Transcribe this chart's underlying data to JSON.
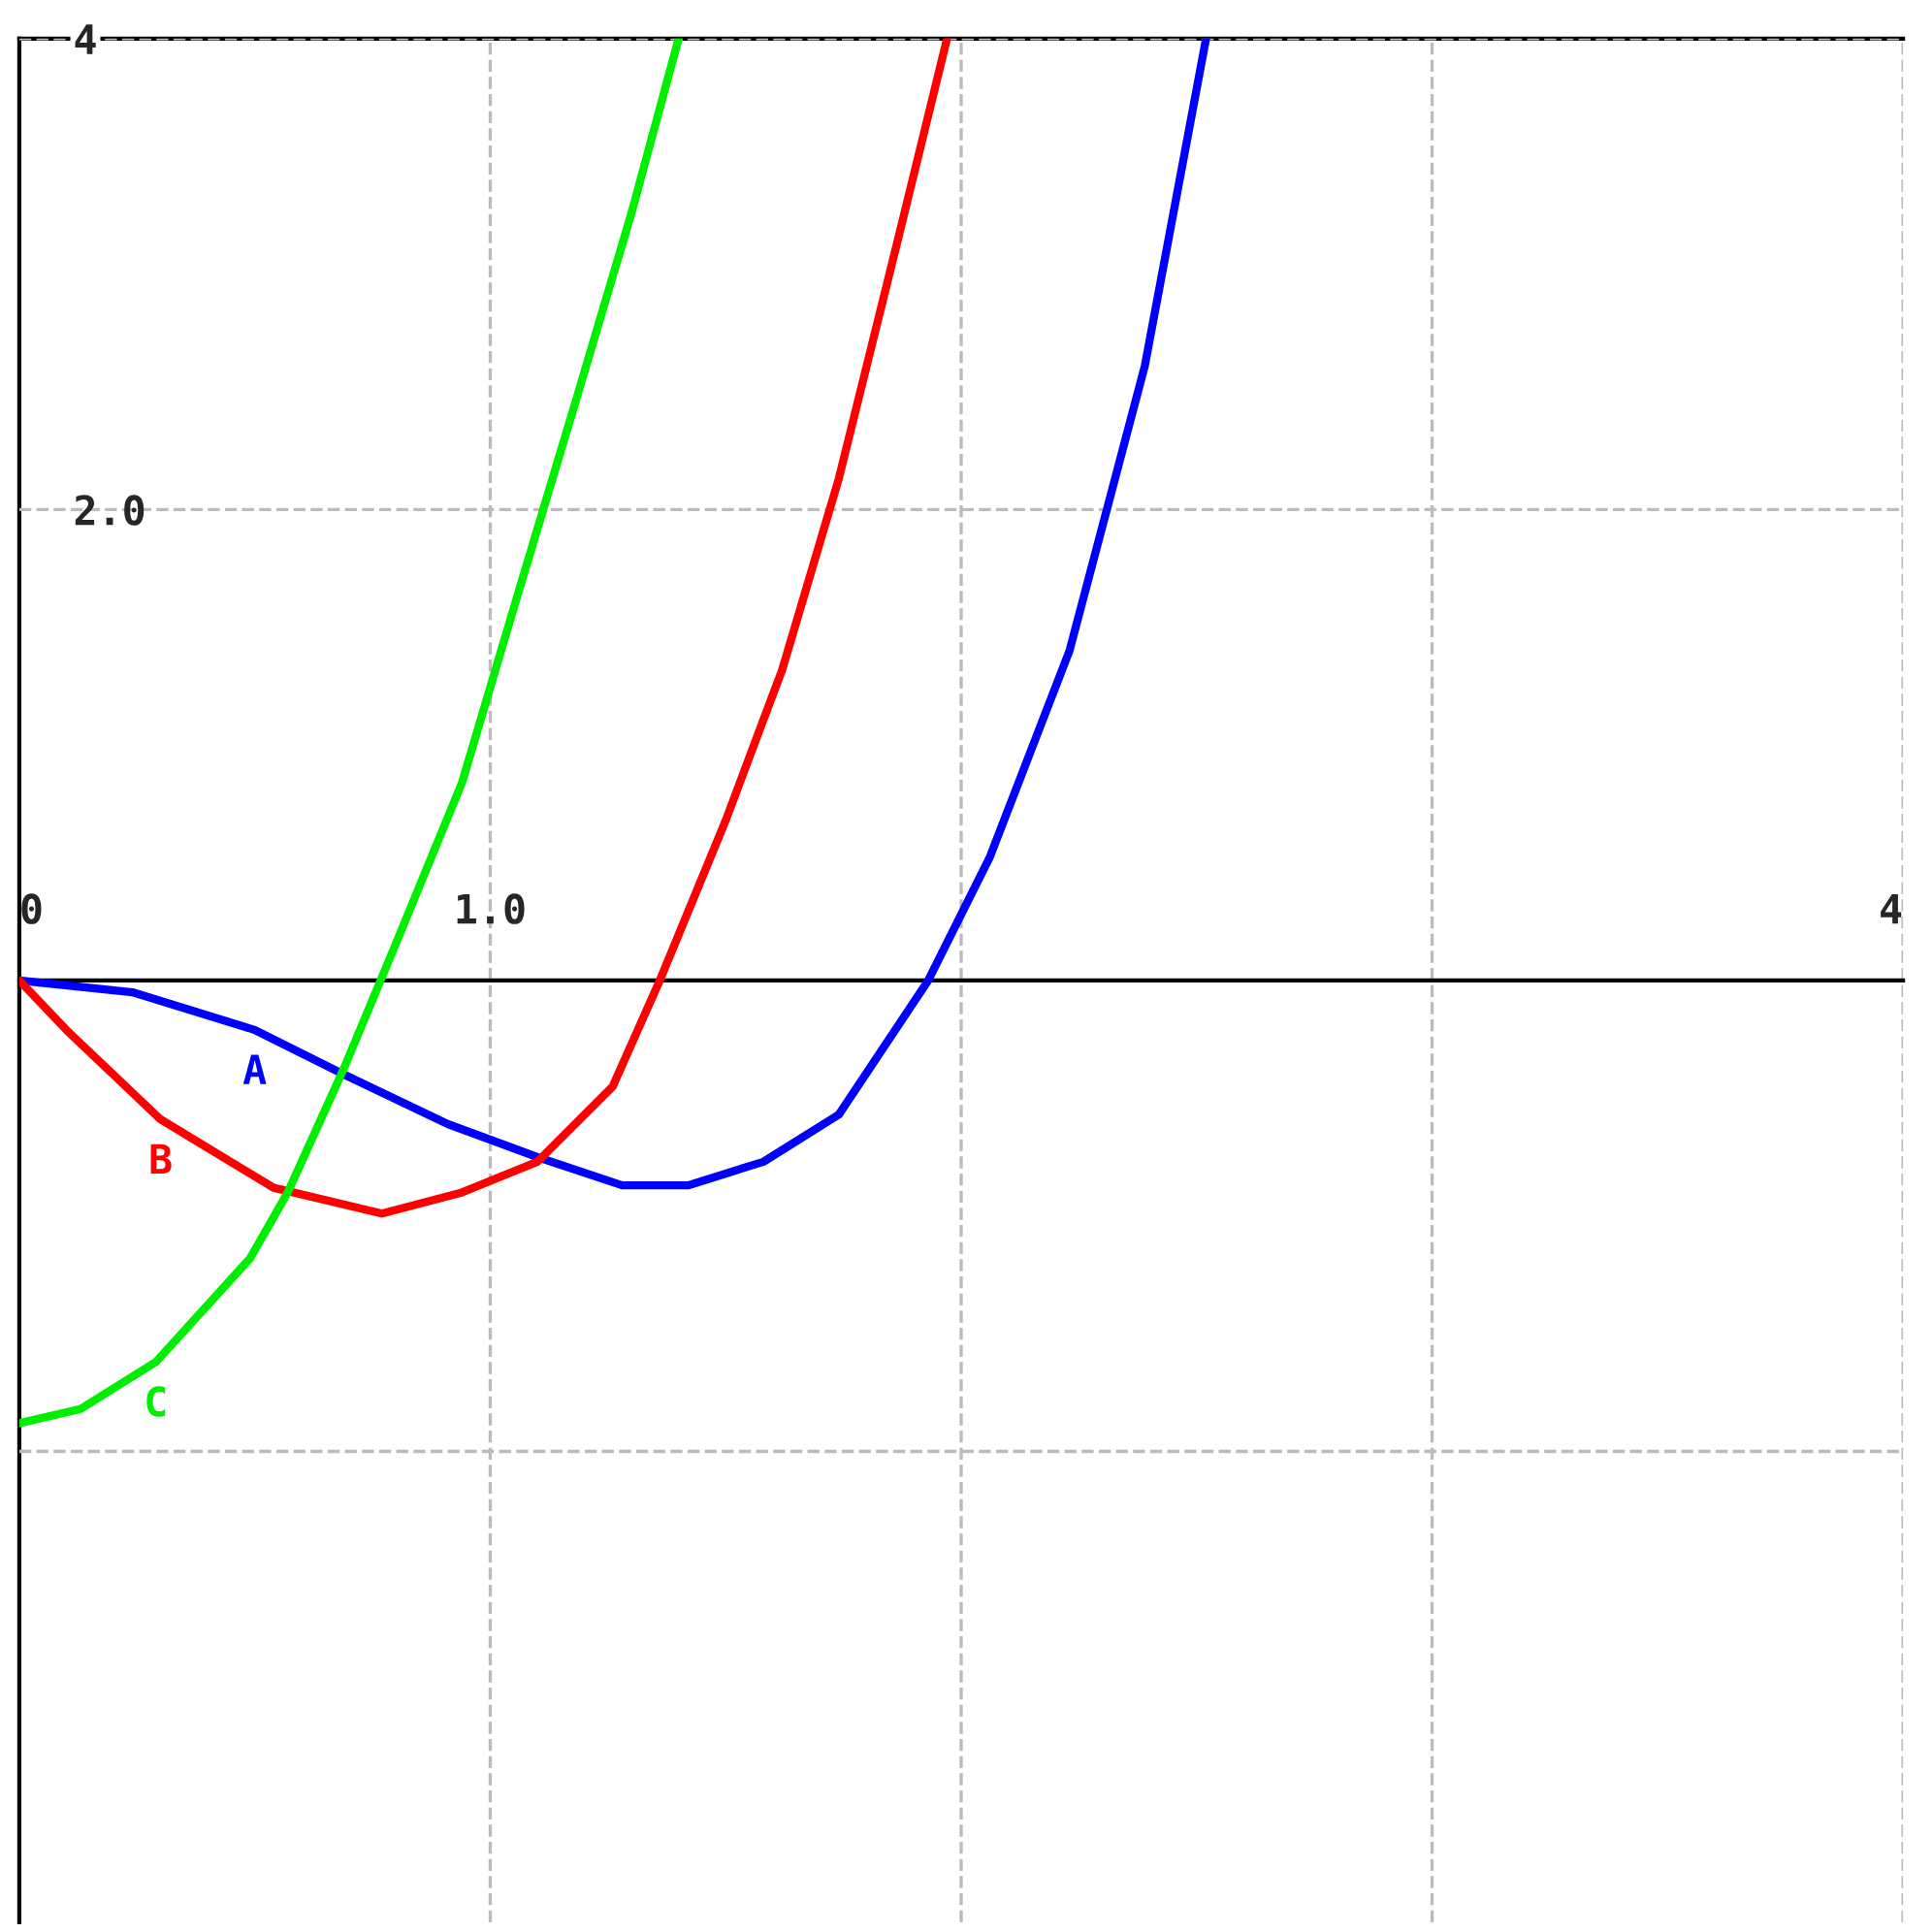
{
  "chart_data": {
    "type": "line",
    "xlim": [
      0,
      4
    ],
    "ylim": [
      -4,
      4
    ],
    "xticks": [
      0,
      {
        "value": 1,
        "label": "1.0"
      },
      {
        "value": 2,
        "label": null
      },
      {
        "value": 3,
        "label": null
      },
      4
    ],
    "yticks": [
      {
        "value": -2,
        "label": null
      },
      {
        "value": 2,
        "label": "2.0"
      },
      4
    ],
    "grid": true,
    "line_style": "solid",
    "marker": "none",
    "series": [
      {
        "name": "A",
        "color": "#0000ff",
        "x": [
          0,
          0.24,
          0.5,
          0.69,
          0.91,
          1.1,
          1.28,
          1.42,
          1.58,
          1.74,
          1.93,
          2.06,
          2.23,
          2.39,
          2.52
        ],
        "values": [
          0,
          -0.05,
          -0.21,
          -0.4,
          -0.61,
          -0.75,
          -0.87,
          -0.87,
          -0.77,
          -0.57,
          0,
          0.52,
          1.4,
          2.61,
          4
        ]
      },
      {
        "name": "B",
        "color": "#ff0000",
        "x": [
          0,
          0.1,
          0.3,
          0.54,
          0.77,
          0.94,
          1.1,
          1.26,
          1.36,
          1.5,
          1.62,
          1.74,
          1.86,
          1.97
        ],
        "values": [
          0,
          -0.21,
          -0.59,
          -0.88,
          -0.99,
          -0.9,
          -0.77,
          -0.45,
          0,
          0.68,
          1.32,
          2.13,
          3.1,
          4
        ]
      },
      {
        "name": "C",
        "color": "#00ee00",
        "x": [
          0,
          0.13,
          0.29,
          0.49,
          0.57,
          0.69,
          0.79,
          0.94,
          1.06,
          1.18,
          1.3,
          1.4
        ],
        "values": [
          -1.88,
          -1.82,
          -1.62,
          -1.18,
          -0.9,
          -0.37,
          0.11,
          0.84,
          1.65,
          2.45,
          3.26,
          4
        ]
      }
    ]
  }
}
